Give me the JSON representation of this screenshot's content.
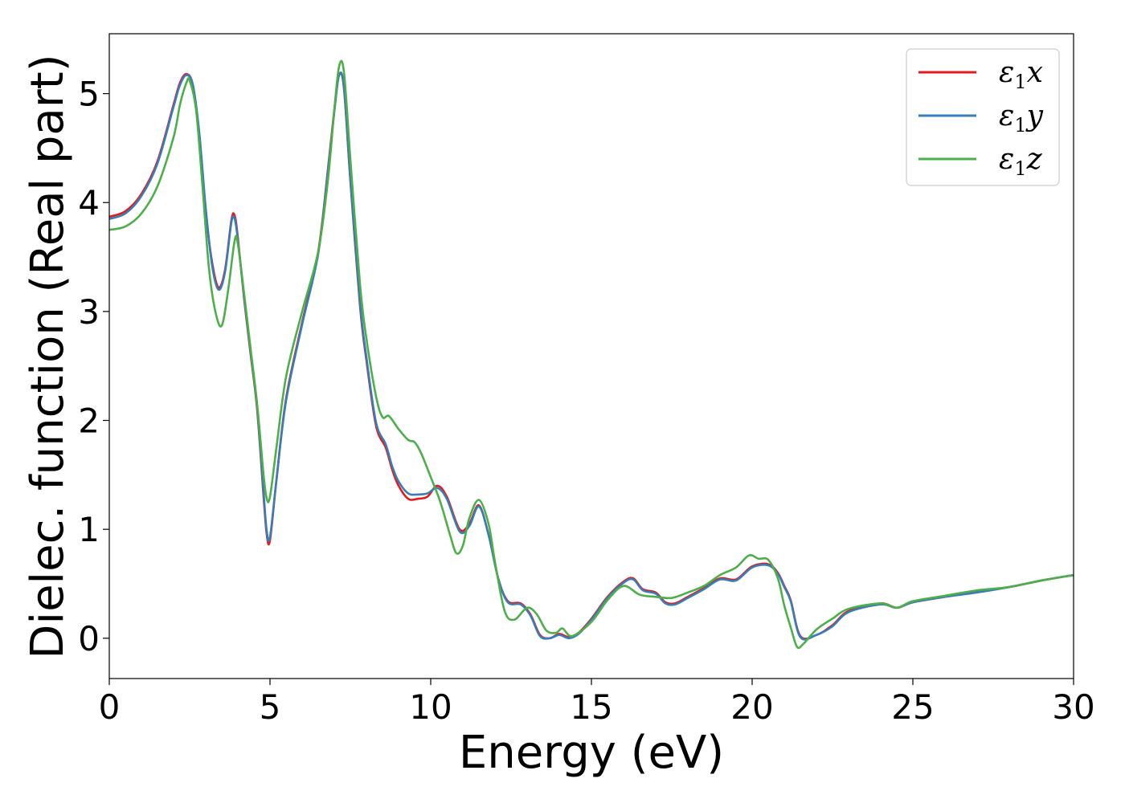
{
  "chart_data": {
    "type": "line",
    "title": "",
    "xlabel": "Energy (eV)",
    "ylabel": "Dielec. function (Real part)",
    "xlim": [
      0,
      30
    ],
    "ylim": [
      -0.37,
      5.55
    ],
    "xticks": [
      0,
      5,
      10,
      15,
      20,
      25,
      30
    ],
    "yticks": [
      0,
      1,
      2,
      3,
      4,
      5
    ],
    "grid": false,
    "legend": "top-right",
    "series": [
      {
        "name": "ε1x",
        "label_base": "ε",
        "label_sub": "1",
        "label_suffix": "x",
        "color": "#e41a1c",
        "x": [
          0,
          0.5,
          1.0,
          1.5,
          2.0,
          2.2,
          2.4,
          2.6,
          2.8,
          3.0,
          3.2,
          3.4,
          3.6,
          3.8,
          3.9,
          4.0,
          4.2,
          4.4,
          4.6,
          4.8,
          4.9,
          5.0,
          5.2,
          5.5,
          6.0,
          6.5,
          6.8,
          7.0,
          7.15,
          7.3,
          7.5,
          7.8,
          8.0,
          8.3,
          8.6,
          8.8,
          9.0,
          9.3,
          9.6,
          9.9,
          10.2,
          10.5,
          10.9,
          11.2,
          11.5,
          11.8,
          12.1,
          12.4,
          12.8,
          13.1,
          13.4,
          13.7,
          14.0,
          14.3,
          14.6,
          15.0,
          15.5,
          16.0,
          16.3,
          16.6,
          17.0,
          17.3,
          17.6,
          18.0,
          18.5,
          19.0,
          19.5,
          20.0,
          20.5,
          20.8,
          21.0,
          21.2,
          21.5,
          22.0,
          22.5,
          23.0,
          24.0,
          24.5,
          25.0,
          26.0,
          27.0,
          28.0,
          29.0,
          30.0
        ],
        "values": [
          3.87,
          3.92,
          4.08,
          4.38,
          4.9,
          5.1,
          5.18,
          5.08,
          4.62,
          3.92,
          3.45,
          3.22,
          3.38,
          3.84,
          3.88,
          3.68,
          3.1,
          2.6,
          2.1,
          1.3,
          0.95,
          0.9,
          1.45,
          2.2,
          2.9,
          3.55,
          4.3,
          4.85,
          5.17,
          5.05,
          4.2,
          3.05,
          2.55,
          1.95,
          1.75,
          1.55,
          1.4,
          1.28,
          1.28,
          1.3,
          1.4,
          1.3,
          1.0,
          1.05,
          1.22,
          0.95,
          0.55,
          0.34,
          0.32,
          0.22,
          0.03,
          0.0,
          0.04,
          0.01,
          0.05,
          0.18,
          0.38,
          0.52,
          0.55,
          0.45,
          0.42,
          0.33,
          0.32,
          0.38,
          0.46,
          0.55,
          0.54,
          0.66,
          0.68,
          0.6,
          0.48,
          0.35,
          0.02,
          0.03,
          0.12,
          0.25,
          0.32,
          0.28,
          0.33,
          0.38,
          0.43,
          0.47,
          0.53,
          0.58
        ]
      },
      {
        "name": "ε1y",
        "label_base": "ε",
        "label_sub": "1",
        "label_suffix": "y",
        "color": "#377eb8",
        "x": [
          0,
          0.5,
          1.0,
          1.5,
          2.0,
          2.2,
          2.4,
          2.6,
          2.8,
          3.0,
          3.2,
          3.4,
          3.6,
          3.8,
          3.9,
          4.0,
          4.2,
          4.4,
          4.6,
          4.8,
          4.9,
          5.0,
          5.2,
          5.5,
          6.0,
          6.5,
          6.8,
          7.0,
          7.15,
          7.3,
          7.5,
          7.8,
          8.0,
          8.3,
          8.6,
          8.8,
          9.0,
          9.3,
          9.6,
          9.9,
          10.2,
          10.5,
          10.9,
          11.2,
          11.5,
          11.8,
          12.1,
          12.4,
          12.8,
          13.1,
          13.4,
          13.7,
          14.0,
          14.3,
          14.6,
          15.0,
          15.5,
          16.0,
          16.3,
          16.6,
          17.0,
          17.3,
          17.6,
          18.0,
          18.5,
          19.0,
          19.5,
          20.0,
          20.5,
          20.8,
          21.0,
          21.2,
          21.5,
          22.0,
          22.5,
          23.0,
          24.0,
          24.5,
          25.0,
          26.0,
          27.0,
          28.0,
          29.0,
          30.0
        ],
        "values": [
          3.85,
          3.9,
          4.06,
          4.36,
          4.88,
          5.08,
          5.17,
          5.08,
          4.64,
          3.95,
          3.42,
          3.2,
          3.36,
          3.82,
          3.85,
          3.66,
          3.12,
          2.62,
          2.12,
          1.34,
          0.98,
          0.93,
          1.45,
          2.18,
          2.88,
          3.53,
          4.28,
          4.83,
          5.17,
          5.06,
          4.22,
          3.08,
          2.58,
          1.98,
          1.78,
          1.58,
          1.44,
          1.33,
          1.32,
          1.33,
          1.38,
          1.28,
          0.98,
          1.03,
          1.21,
          0.95,
          0.55,
          0.33,
          0.31,
          0.21,
          0.02,
          0.0,
          0.03,
          0.0,
          0.04,
          0.17,
          0.37,
          0.51,
          0.54,
          0.44,
          0.41,
          0.32,
          0.31,
          0.37,
          0.45,
          0.54,
          0.53,
          0.65,
          0.67,
          0.59,
          0.47,
          0.34,
          0.01,
          0.03,
          0.11,
          0.24,
          0.31,
          0.28,
          0.33,
          0.38,
          0.42,
          0.47,
          0.53,
          0.58
        ]
      },
      {
        "name": "ε1z",
        "label_base": "ε",
        "label_sub": "1",
        "label_suffix": "z",
        "color": "#4daf4a",
        "x": [
          0,
          0.5,
          1.0,
          1.5,
          2.0,
          2.2,
          2.4,
          2.5,
          2.7,
          2.9,
          3.1,
          3.3,
          3.5,
          3.7,
          3.9,
          4.0,
          4.2,
          4.4,
          4.6,
          4.8,
          4.9,
          5.0,
          5.2,
          5.5,
          6.0,
          6.5,
          6.8,
          7.0,
          7.15,
          7.3,
          7.5,
          7.8,
          8.0,
          8.3,
          8.5,
          8.7,
          9.0,
          9.3,
          9.5,
          9.7,
          10.0,
          10.3,
          10.6,
          10.8,
          11.0,
          11.2,
          11.5,
          11.8,
          12.0,
          12.3,
          12.6,
          13.0,
          13.3,
          13.6,
          13.9,
          14.1,
          14.4,
          15.0,
          15.5,
          16.0,
          16.5,
          17.0,
          17.5,
          18.0,
          18.5,
          19.0,
          19.5,
          19.9,
          20.2,
          20.5,
          20.8,
          21.0,
          21.2,
          21.4,
          21.6,
          22.0,
          22.5,
          23.0,
          24.0,
          24.5,
          25.0,
          26.0,
          27.0,
          28.0,
          29.0,
          30.0
        ],
        "values": [
          3.75,
          3.78,
          3.9,
          4.15,
          4.6,
          4.9,
          5.1,
          5.12,
          4.85,
          4.15,
          3.4,
          3.0,
          2.87,
          3.2,
          3.65,
          3.62,
          3.15,
          2.65,
          2.15,
          1.5,
          1.28,
          1.3,
          1.75,
          2.4,
          3.0,
          3.55,
          4.2,
          4.85,
          5.25,
          5.2,
          4.4,
          3.25,
          2.75,
          2.22,
          2.03,
          2.04,
          1.92,
          1.82,
          1.8,
          1.7,
          1.48,
          1.25,
          0.95,
          0.78,
          0.85,
          1.1,
          1.27,
          1.05,
          0.7,
          0.25,
          0.17,
          0.28,
          0.22,
          0.07,
          0.05,
          0.09,
          0.02,
          0.15,
          0.35,
          0.48,
          0.4,
          0.38,
          0.37,
          0.42,
          0.48,
          0.58,
          0.65,
          0.76,
          0.73,
          0.72,
          0.55,
          0.3,
          0.1,
          -0.08,
          -0.05,
          0.08,
          0.18,
          0.27,
          0.32,
          0.28,
          0.34,
          0.39,
          0.44,
          0.47,
          0.53,
          0.58
        ]
      }
    ]
  }
}
